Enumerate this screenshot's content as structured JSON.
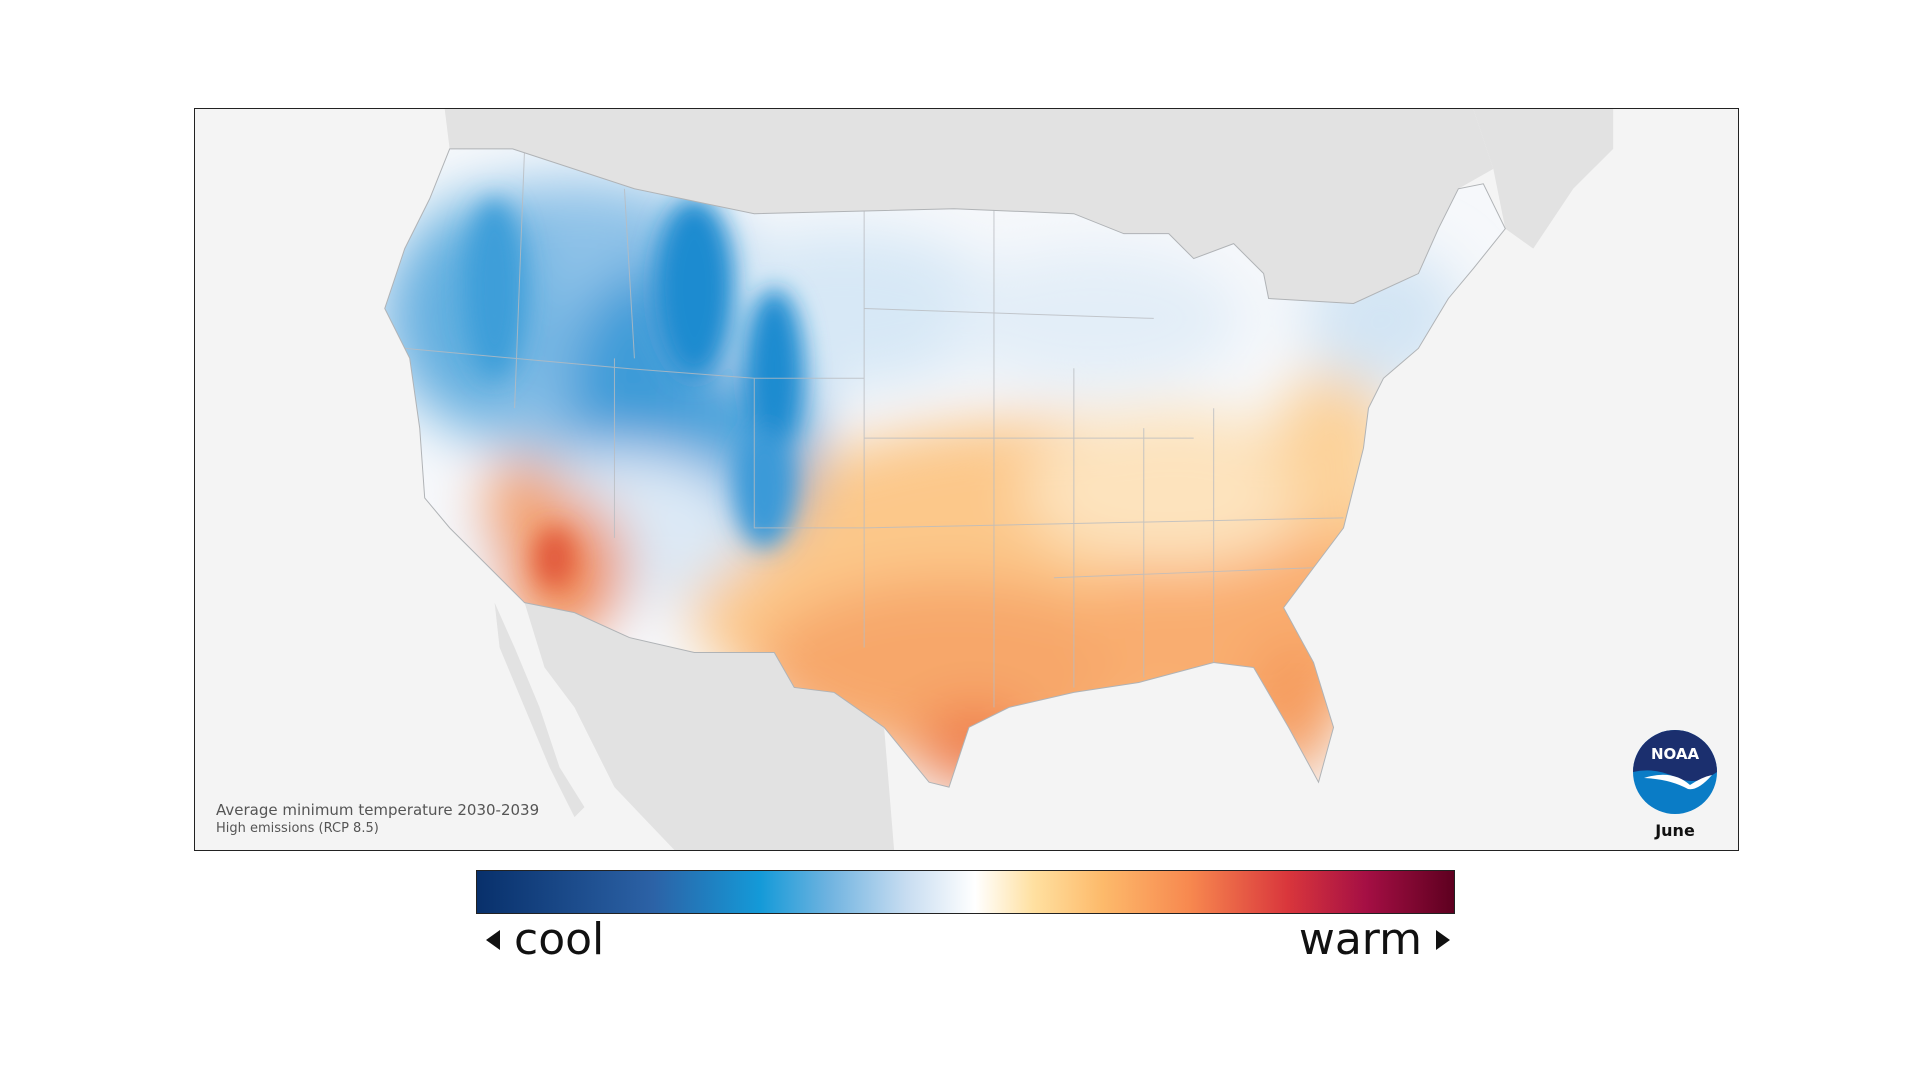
{
  "map": {
    "caption_title": "Average minimum temperature 2030-2039",
    "caption_subtitle": "High emissions (RCP 8.5)",
    "month": "June",
    "logo_text": "NOAA",
    "logo_name": "noaa-logo"
  },
  "legend": {
    "left_label": "cool",
    "right_label": "warm",
    "colors": [
      "#08306b",
      "#149ad8",
      "#ffffff",
      "#fdba6b",
      "#d9363c",
      "#5e0020"
    ]
  },
  "colors": {
    "land_outside": "#e2e2e2",
    "ocean": "#f4f4f4",
    "cool_strong": "#1a88cc",
    "cool_light": "#d6e6f4",
    "neutral": "#f6f8fb",
    "warm_light": "#fcd29a",
    "warm": "#f7a76a",
    "warm_strong": "#e96a44"
  }
}
